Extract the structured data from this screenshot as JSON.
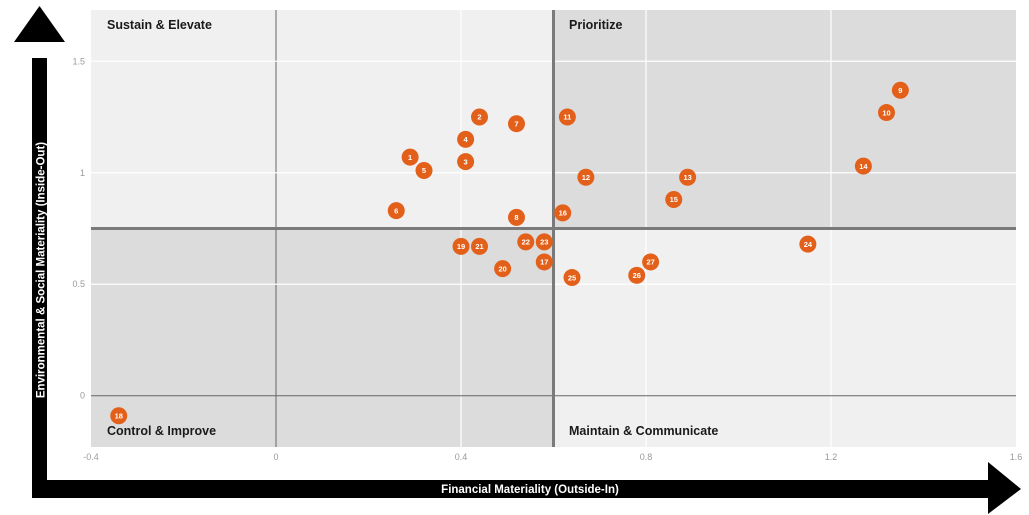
{
  "chart_data": {
    "type": "scatter",
    "xlabel": "Financial Materiality (Outside-In)",
    "ylabel": "Environmental & Social Materiality (Inside-Out)",
    "xlim": [
      -0.4,
      1.6
    ],
    "ylim": [
      -0.23,
      1.73
    ],
    "x_ticks": [
      -0.4,
      0,
      0.4,
      0.8,
      1.2,
      1.6
    ],
    "x_tick_labels": [
      "-0.4",
      "0",
      "0.4",
      "0.8",
      "1.2",
      "1.6"
    ],
    "y_ticks": [
      0,
      0.5,
      1,
      1.5
    ],
    "y_tick_labels": [
      "0",
      "0.5",
      "1",
      "1.5"
    ],
    "x_threshold": 0.6,
    "y_threshold": 0.75,
    "grid": true,
    "quadrants": {
      "top_left": "Sustain & Elevate",
      "top_right": "Prioritize",
      "bottom_left": "Control & Improve",
      "bottom_right": "Maintain & Communicate"
    },
    "marker_color": "#e3601a",
    "shaded_color": "#dcdcdc",
    "light_color": "#f0f0f0",
    "points": [
      {
        "label": "1",
        "x": 0.29,
        "y": 1.07
      },
      {
        "label": "2",
        "x": 0.44,
        "y": 1.25
      },
      {
        "label": "3",
        "x": 0.41,
        "y": 1.05
      },
      {
        "label": "4",
        "x": 0.41,
        "y": 1.15
      },
      {
        "label": "5",
        "x": 0.32,
        "y": 1.01
      },
      {
        "label": "6",
        "x": 0.26,
        "y": 0.83
      },
      {
        "label": "7",
        "x": 0.52,
        "y": 1.22
      },
      {
        "label": "8",
        "x": 0.52,
        "y": 0.8
      },
      {
        "label": "9",
        "x": 1.35,
        "y": 1.37
      },
      {
        "label": "10",
        "x": 1.32,
        "y": 1.27
      },
      {
        "label": "11",
        "x": 0.63,
        "y": 1.25
      },
      {
        "label": "12",
        "x": 0.67,
        "y": 0.98
      },
      {
        "label": "13",
        "x": 0.89,
        "y": 0.98
      },
      {
        "label": "14",
        "x": 1.27,
        "y": 1.03
      },
      {
        "label": "15",
        "x": 0.86,
        "y": 0.88
      },
      {
        "label": "16",
        "x": 0.62,
        "y": 0.82
      },
      {
        "label": "17",
        "x": 0.58,
        "y": 0.6
      },
      {
        "label": "18",
        "x": -0.34,
        "y": -0.09
      },
      {
        "label": "19",
        "x": 0.4,
        "y": 0.67
      },
      {
        "label": "20",
        "x": 0.49,
        "y": 0.57
      },
      {
        "label": "21",
        "x": 0.44,
        "y": 0.67
      },
      {
        "label": "22",
        "x": 0.54,
        "y": 0.69
      },
      {
        "label": "23",
        "x": 0.58,
        "y": 0.69
      },
      {
        "label": "24",
        "x": 1.15,
        "y": 0.68
      },
      {
        "label": "25",
        "x": 0.64,
        "y": 0.53
      },
      {
        "label": "26",
        "x": 0.78,
        "y": 0.54
      },
      {
        "label": "27",
        "x": 0.81,
        "y": 0.6
      }
    ]
  }
}
